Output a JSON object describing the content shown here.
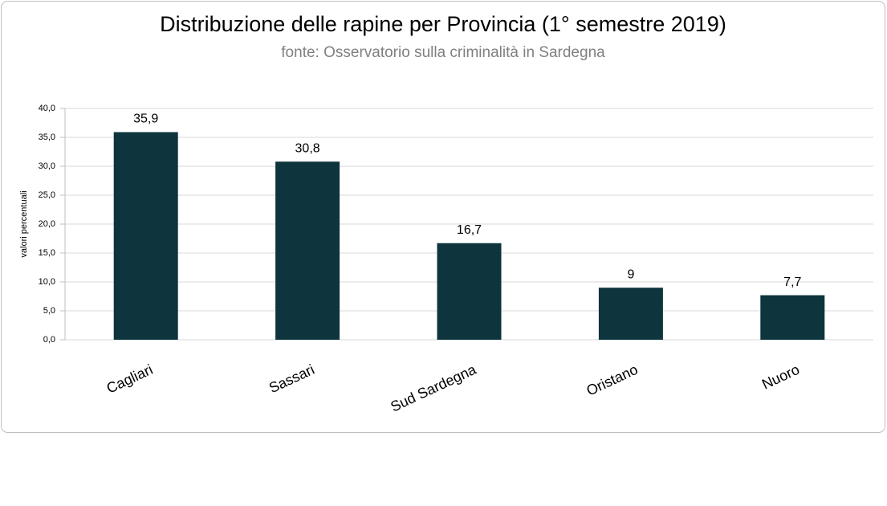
{
  "chart_data": {
    "type": "bar",
    "title": "Distribuzione delle rapine per Provincia (1° semestre 2019)",
    "subtitle": "fonte: Osservatorio sulla criminalità in Sardegna",
    "y_label": "valori percentuali",
    "categories": [
      "Cagliari",
      "Sassari",
      "Sud Sardegna",
      "Oristano",
      "Nuoro"
    ],
    "values": [
      35.9,
      30.8,
      16.7,
      9,
      7.7
    ],
    "value_labels": [
      "35,9",
      "30,8",
      "16,7",
      "9",
      "7,7"
    ],
    "color": "#0e343d",
    "ylim": [
      0,
      40
    ],
    "yticks": [
      {
        "value": 0,
        "label": "0,0"
      },
      {
        "value": 5,
        "label": "5,0"
      },
      {
        "value": 10,
        "label": "10,0"
      },
      {
        "value": 15,
        "label": "15,0"
      },
      {
        "value": 20,
        "label": "20,0"
      },
      {
        "value": 25,
        "label": "25,0"
      },
      {
        "value": 30,
        "label": "30,0"
      },
      {
        "value": 35,
        "label": "35,0"
      },
      {
        "value": 40,
        "label": "40,0"
      }
    ],
    "grid": true
  }
}
